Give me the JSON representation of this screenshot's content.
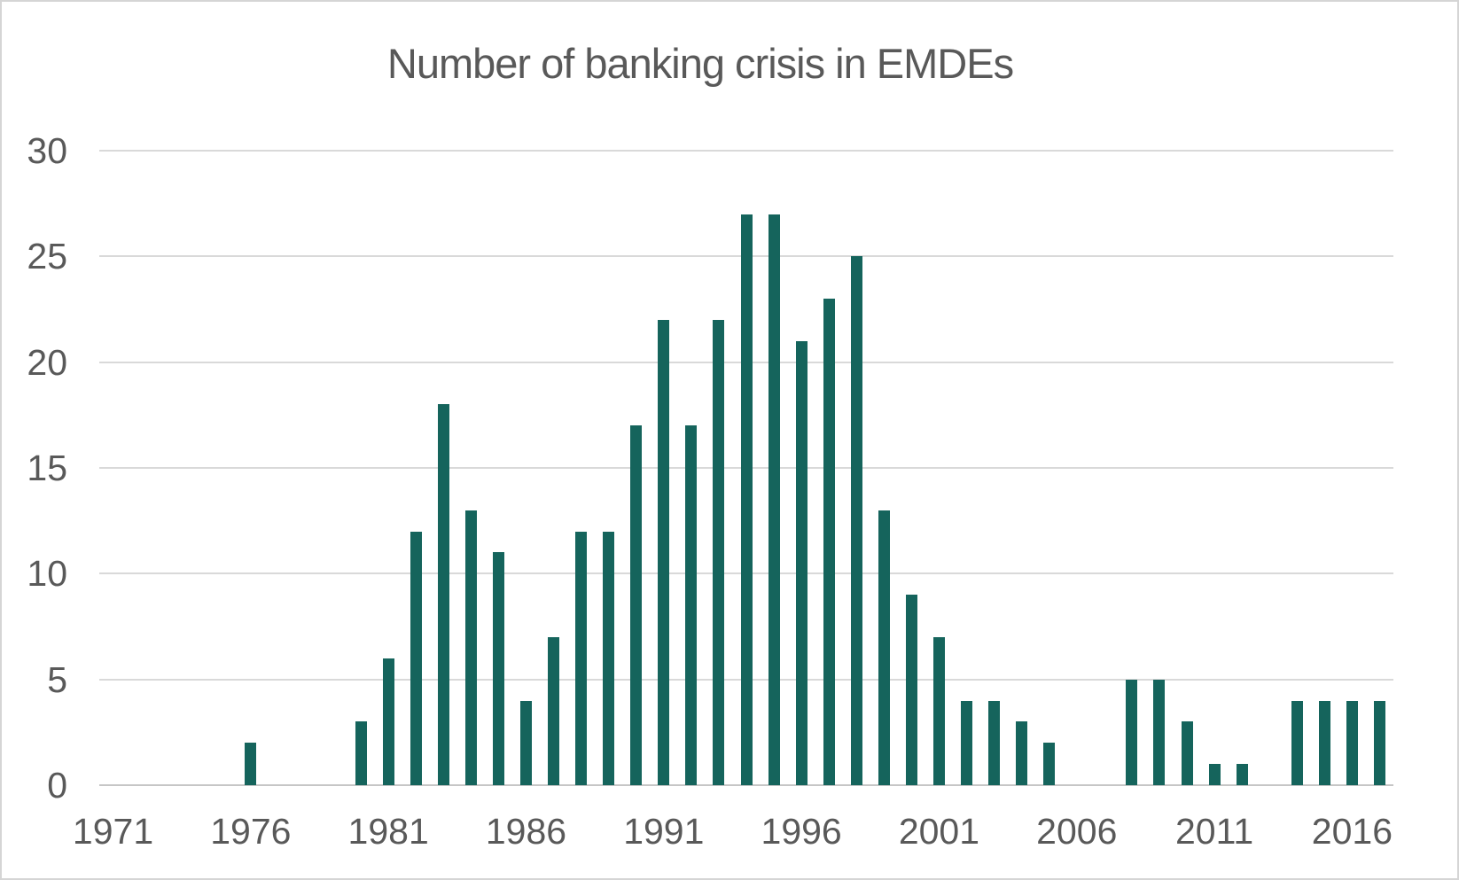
{
  "chart_data": {
    "type": "bar",
    "title": "Number of banking crisis in EMDEs",
    "categories": [
      1971,
      1972,
      1973,
      1974,
      1975,
      1976,
      1977,
      1978,
      1979,
      1980,
      1981,
      1982,
      1983,
      1984,
      1985,
      1986,
      1987,
      1988,
      1989,
      1990,
      1991,
      1992,
      1993,
      1994,
      1995,
      1996,
      1997,
      1998,
      1999,
      2000,
      2001,
      2002,
      2003,
      2004,
      2005,
      2006,
      2007,
      2008,
      2009,
      2010,
      2011,
      2012,
      2013,
      2014,
      2015,
      2016,
      2017
    ],
    "values": [
      0,
      0,
      0,
      0,
      0,
      2,
      0,
      0,
      0,
      3,
      6,
      12,
      18,
      13,
      11,
      4,
      7,
      12,
      12,
      17,
      22,
      17,
      22,
      27,
      27,
      21,
      23,
      25,
      13,
      9,
      7,
      4,
      4,
      3,
      2,
      0,
      0,
      5,
      5,
      3,
      1,
      1,
      0,
      4,
      4,
      4,
      4
    ],
    "x_tick_labels": [
      "1971",
      "1976",
      "1981",
      "1986",
      "1991",
      "1996",
      "2001",
      "2006",
      "2011",
      "2016"
    ],
    "y_ticks": [
      0,
      5,
      10,
      15,
      20,
      25,
      30
    ],
    "ylim": [
      0,
      30
    ],
    "xlabel": "",
    "ylabel": "",
    "legend_position": "none",
    "grid": "horizontal",
    "bar_color": "#15645C",
    "grid_color": "#d9d9d9",
    "axis_line_color": "#c6c6c6",
    "text_color": "#595959"
  }
}
